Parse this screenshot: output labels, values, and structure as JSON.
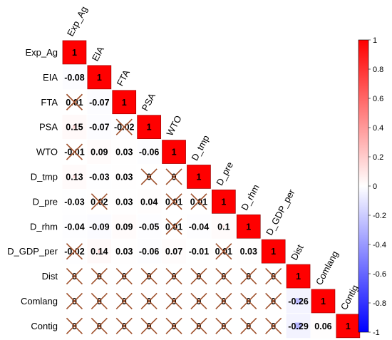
{
  "chart_data": {
    "type": "heatmap",
    "variant": "lower-triangular correlation matrix",
    "variables": [
      "Exp_Ag",
      "EIA",
      "FTA",
      "PSA",
      "WTO",
      "D_tmp",
      "D_pre",
      "D_rhm",
      "D_GDP_per",
      "Dist",
      "Comlang",
      "Contig"
    ],
    "matrix": [
      [
        1
      ],
      [
        -0.08,
        1
      ],
      [
        0.01,
        -0.07,
        1
      ],
      [
        0.15,
        -0.07,
        -0.02,
        1
      ],
      [
        -0.01,
        0.09,
        0.03,
        -0.06,
        1
      ],
      [
        0.13,
        -0.03,
        0.03,
        0,
        0,
        1
      ],
      [
        -0.03,
        0.02,
        0.03,
        0.04,
        0.01,
        0.01,
        1
      ],
      [
        -0.04,
        -0.09,
        0.09,
        -0.05,
        0.01,
        -0.04,
        0.1,
        1
      ],
      [
        -0.02,
        0.14,
        0.03,
        -0.06,
        0.07,
        -0.01,
        0.01,
        0.03,
        1
      ],
      [
        0,
        0,
        0,
        0,
        0,
        0,
        0,
        0,
        0,
        1
      ],
      [
        0,
        0,
        0,
        0,
        0,
        0,
        0,
        0,
        0,
        -0.26,
        1
      ],
      [
        0,
        0,
        0,
        0,
        0,
        0,
        0,
        0,
        0,
        -0.29,
        0.06,
        1
      ]
    ],
    "insignificant": [
      [
        2,
        0
      ],
      [
        3,
        2
      ],
      [
        4,
        0
      ],
      [
        5,
        3
      ],
      [
        5,
        4
      ],
      [
        6,
        1
      ],
      [
        6,
        4
      ],
      [
        6,
        5
      ],
      [
        7,
        4
      ],
      [
        8,
        0
      ],
      [
        8,
        6
      ],
      [
        9,
        0
      ],
      [
        9,
        1
      ],
      [
        9,
        2
      ],
      [
        9,
        3
      ],
      [
        9,
        4
      ],
      [
        9,
        5
      ],
      [
        9,
        6
      ],
      [
        9,
        7
      ],
      [
        9,
        8
      ],
      [
        10,
        0
      ],
      [
        10,
        1
      ],
      [
        10,
        2
      ],
      [
        10,
        3
      ],
      [
        10,
        4
      ],
      [
        10,
        5
      ],
      [
        10,
        6
      ],
      [
        10,
        7
      ],
      [
        10,
        8
      ],
      [
        11,
        0
      ],
      [
        11,
        1
      ],
      [
        11,
        2
      ],
      [
        11,
        3
      ],
      [
        11,
        4
      ],
      [
        11,
        5
      ],
      [
        11,
        6
      ],
      [
        11,
        7
      ],
      [
        11,
        8
      ]
    ],
    "colorbar": {
      "range": [
        -1,
        1
      ],
      "ticks": [
        1,
        0.8,
        0.6,
        0.4,
        0.2,
        0,
        -0.2,
        -0.4,
        -0.6,
        -0.8,
        -1
      ],
      "colors": {
        "negative": "#0000FF",
        "neutral": "#FFFFFF",
        "positive": "#FF0000"
      }
    },
    "cross_color": "#A0522D",
    "grid": false,
    "legend_placement": "right"
  }
}
